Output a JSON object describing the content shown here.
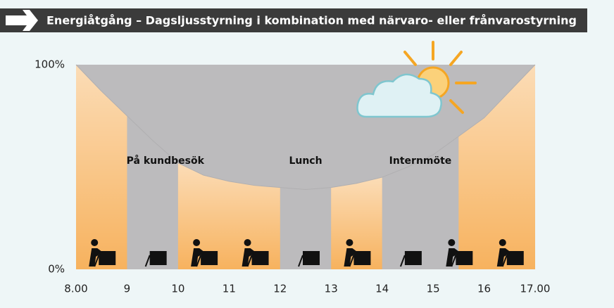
{
  "chart_data": {
    "type": "area",
    "title": "Energiåtgång – Dagsljusstyrning i kombination med närvaro- eller frånvarostyrning",
    "x": [
      8,
      8.5,
      9,
      9.5,
      10,
      10.5,
      11,
      11.5,
      12,
      12.5,
      13,
      13.5,
      14,
      14.5,
      15,
      15.5,
      16,
      16.5,
      17
    ],
    "values": [
      100,
      87,
      75,
      63,
      52,
      46,
      43,
      41,
      40,
      39,
      40,
      42,
      45,
      50,
      56,
      65,
      74,
      87,
      100
    ],
    "occupied": [
      [
        8,
        9
      ],
      [
        10,
        12
      ],
      [
        13,
        14
      ],
      [
        15.5,
        17
      ]
    ],
    "annotations": [
      {
        "text": "På kundbesök",
        "x": 9.75,
        "y": 53
      },
      {
        "text": "Lunch",
        "x": 12.5,
        "y": 53
      },
      {
        "text": "Internmöte",
        "x": 14.75,
        "y": 53
      }
    ],
    "xlim": [
      8,
      17
    ],
    "ylim": [
      0,
      100
    ],
    "xticks": [
      {
        "value": 8,
        "label": "8.00"
      },
      9,
      10,
      11,
      12,
      13,
      14,
      15,
      16,
      {
        "value": 17,
        "label": "17.00"
      }
    ],
    "yticks": [
      {
        "value": 0,
        "label": "0%"
      },
      {
        "value": 100,
        "label": "100%"
      }
    ],
    "colors": {
      "saved": "#bcbbbd",
      "used": "#f7b25e"
    }
  }
}
